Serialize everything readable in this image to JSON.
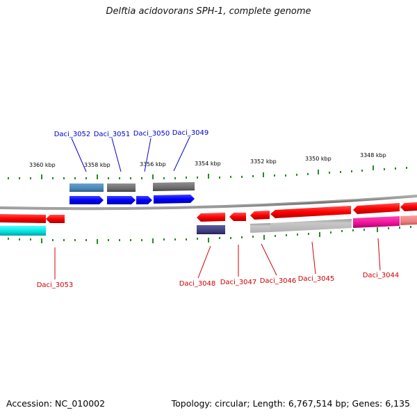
{
  "title": "Delftia acidovorans SPH-1, complete genome",
  "accession_text": "Accession: NC_010002",
  "topology_text": "Topology: circular; Length: 6,767,514 bp; Genes: 6,135",
  "scale_labels": [
    "3360 kbp",
    "3358 kbp",
    "3356 kbp",
    "3354 kbp",
    "3352 kbp",
    "3350 kbp",
    "3348 kbp"
  ],
  "genes_top": [
    {
      "label": "Daci_3052",
      "color": "#0000cc"
    },
    {
      "label": "Daci_3051",
      "color": "#0000cc"
    },
    {
      "label": "Daci_3050",
      "color": "#0000cc"
    },
    {
      "label": "Daci_3049",
      "color": "#0000cc"
    }
  ],
  "genes_bottom": [
    {
      "label": "Daci_3053",
      "color": "#cc0000"
    },
    {
      "label": "Daci_3048",
      "color": "#cc0000"
    },
    {
      "label": "Daci_3047",
      "color": "#cc0000"
    },
    {
      "label": "Daci_3046",
      "color": "#cc0000"
    },
    {
      "label": "Daci_3045",
      "color": "#cc0000"
    },
    {
      "label": "Daci_3044",
      "color": "#cc0000"
    }
  ],
  "colors": {
    "forward_strand": "#0000ff",
    "reverse_strand": "#ff0000",
    "backbone": "#888888",
    "ticks": "#228b22",
    "steelblue_box": "#4682b4",
    "gray_box": "#707070",
    "slate_box": "#3c3c7c",
    "light_gray_box": "#bcbcbc",
    "magenta_box": "#ee1199",
    "pink_box": "#f08080",
    "cyan_box": "#00e0e0"
  }
}
